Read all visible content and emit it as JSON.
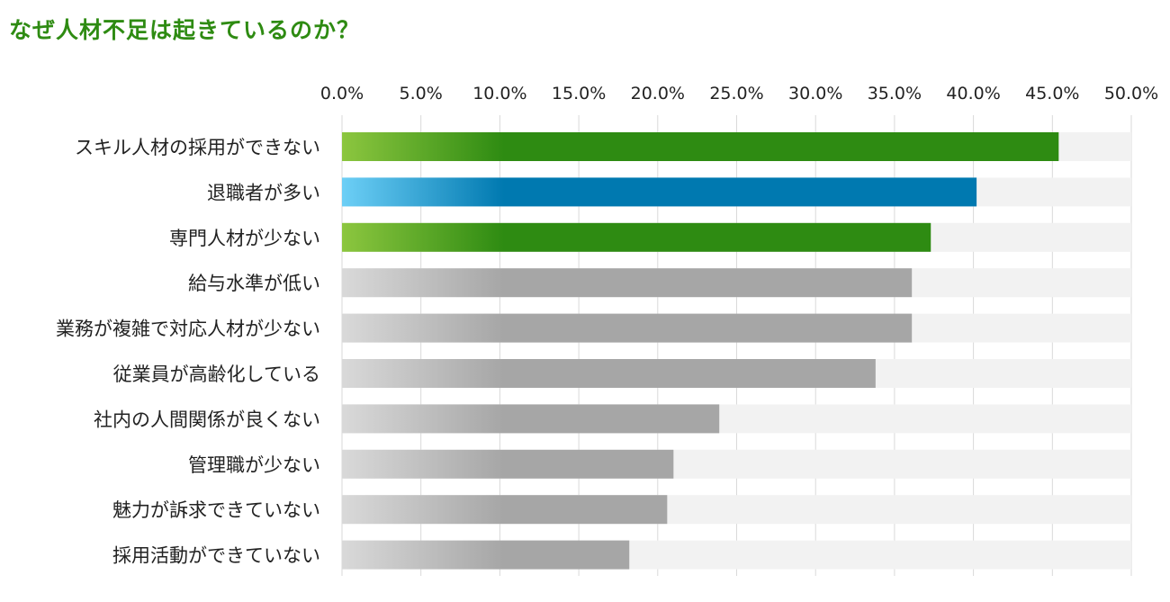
{
  "title": "なぜ人材不足は起きているのか？",
  "chart_data": {
    "type": "bar",
    "orientation": "horizontal",
    "title": "なぜ人材不足は起きているのか？",
    "xlim": [
      0,
      50
    ],
    "x_ticks": [
      "0.0%",
      "5.0%",
      "10.0%",
      "15.0%",
      "20.0%",
      "25.0%",
      "30.0%",
      "35.0%",
      "40.0%",
      "45.0%",
      "50.0%"
    ],
    "x_axis_position": "top",
    "grid": true,
    "categories": [
      "スキル人材の採用ができない",
      "退職者が多い",
      "専門人材が少ない",
      "給与水準が低い",
      "業務が複雑で対応人材が少ない",
      "従業員が高齢化している",
      "社内の人間関係が良くない",
      "管理職が少ない",
      "魅力が訴求できていない",
      "採用活動ができていない"
    ],
    "values": [
      45.4,
      40.2,
      37.3,
      36.1,
      36.1,
      33.8,
      23.9,
      21.0,
      20.6,
      18.2
    ],
    "bar_colors": [
      "green",
      "blue",
      "green",
      "gray",
      "gray",
      "gray",
      "gray",
      "gray",
      "gray",
      "gray"
    ],
    "colors": {
      "green": "#2e8b12",
      "green_light": "#8cc63f",
      "blue": "#0079b0",
      "blue_light": "#6dcff6",
      "gray": "#a6a6a6",
      "gray_light": "#d9d9d9",
      "track": "#f2f2f2",
      "title": "#2e8b12"
    }
  }
}
